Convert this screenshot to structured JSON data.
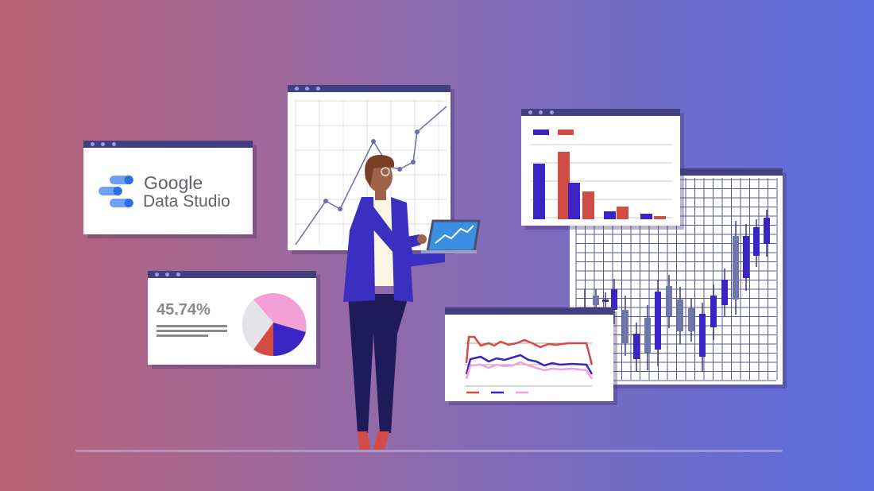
{
  "logo_window": {
    "logo_line1": "Google",
    "logo_line2": "Data Studio"
  },
  "pie_window": {
    "stat_value": "45.74%"
  },
  "colors": {
    "window_bar": "#423f7e",
    "window_dot": "#9a9cf0",
    "blue": "#3a24c4",
    "red": "#d24b45",
    "pink": "#f4a0d8",
    "grey_blue": "#6f77aa",
    "jacket": "#3a2fc0",
    "pants": "#1f1b5a"
  }
}
